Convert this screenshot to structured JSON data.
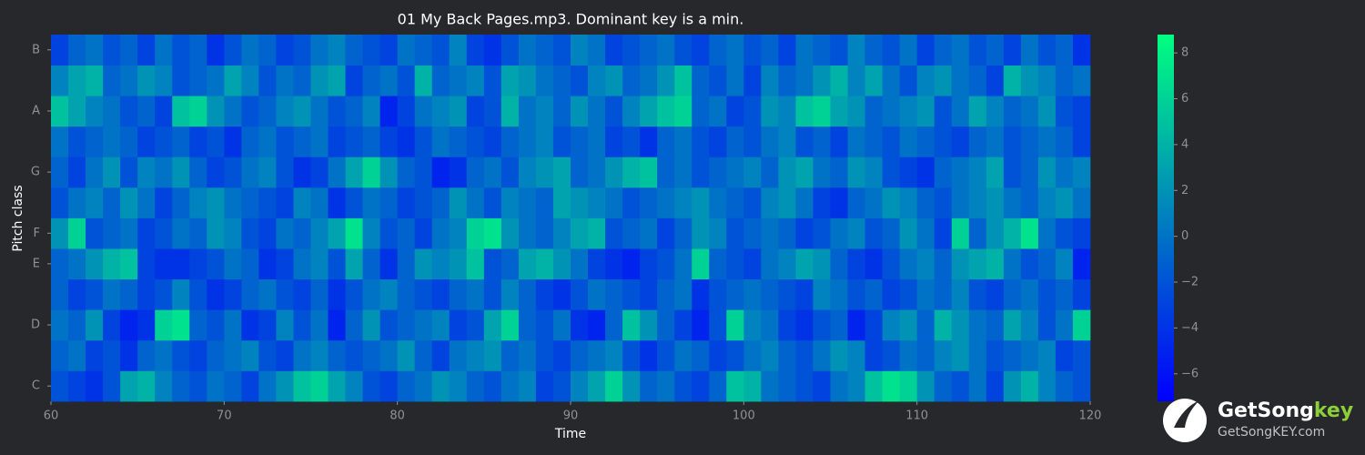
{
  "chart_data": {
    "type": "heatmap",
    "title": "01 My Back Pages.mp3. Dominant key is a min.",
    "x_label": "Time",
    "y_label": "Pitch class",
    "xbins": [
      60,
      61,
      62,
      63,
      64,
      65,
      66,
      67,
      68,
      69,
      70,
      71,
      72,
      73,
      74,
      75,
      76,
      77,
      78,
      79,
      80,
      81,
      82,
      83,
      84,
      85,
      86,
      87,
      88,
      89,
      90,
      91,
      92,
      93,
      94,
      95,
      96,
      97,
      98,
      99,
      100,
      101,
      102,
      103,
      104,
      105,
      106,
      107,
      108,
      109,
      110,
      111,
      112,
      113,
      114,
      115,
      116,
      117,
      118,
      119,
      120
    ],
    "xlim": [
      60,
      120
    ],
    "xticks": [
      60,
      70,
      80,
      90,
      100,
      110,
      120
    ],
    "categories": [
      "C",
      null,
      "D",
      null,
      "E",
      "F",
      null,
      "G",
      null,
      "A",
      null,
      "B"
    ],
    "colormap": "winter",
    "zlim": [
      -7.2,
      8.8
    ],
    "zticks": [
      {
        "value": -6,
        "label": "−6"
      },
      {
        "value": -4,
        "label": "−4"
      },
      {
        "value": -2,
        "label": "−2"
      },
      0,
      2,
      4,
      6,
      8
    ],
    "z": [
      [
        -2,
        -3,
        -4,
        -2,
        3,
        4,
        1,
        -1,
        -2,
        0,
        -1,
        -3,
        0,
        2,
        5,
        6,
        3,
        1,
        -2,
        -3,
        -1,
        0,
        2,
        1,
        -1,
        -2,
        0,
        1,
        -3,
        -2,
        1,
        3,
        6,
        2,
        -1,
        0,
        -2,
        -3,
        -1,
        5,
        4,
        0,
        -1,
        -2,
        -3,
        0,
        1,
        5,
        7,
        6,
        2,
        -1,
        -2,
        0,
        -3,
        2,
        4,
        1,
        -1,
        -2
      ],
      [
        -1,
        0,
        -3,
        -2,
        -4,
        -1,
        0,
        -2,
        -3,
        -1,
        0,
        1,
        -2,
        -3,
        0,
        1,
        -1,
        -2,
        -1,
        0,
        2,
        -1,
        -3,
        0,
        1,
        2,
        -1,
        0,
        -2,
        -3,
        -1,
        0,
        1,
        -2,
        -4,
        -2,
        0,
        -1,
        -3,
        -2,
        0,
        1,
        -1,
        -2,
        0,
        2,
        1,
        -3,
        -2,
        0,
        -1,
        1,
        2,
        0,
        -2,
        -1,
        0,
        1,
        -3,
        -2
      ],
      [
        0,
        -1,
        2,
        -3,
        -5,
        -4,
        6,
        7,
        -1,
        -2,
        0,
        -4,
        -3,
        1,
        -2,
        0,
        -5,
        -1,
        2,
        -2,
        -1,
        0,
        1,
        -3,
        -2,
        3,
        6,
        -1,
        -2,
        0,
        -4,
        -5,
        -1,
        5,
        2,
        -1,
        -3,
        -5,
        -2,
        6,
        1,
        0,
        -3,
        -4,
        -2,
        -1,
        -5,
        -3,
        1,
        2,
        -1,
        4,
        2,
        0,
        -1,
        3,
        1,
        -2,
        0,
        6
      ],
      [
        -1,
        -3,
        -2,
        0,
        -1,
        -3,
        -2,
        1,
        -2,
        -4,
        -3,
        -1,
        0,
        -2,
        -3,
        -1,
        -4,
        -2,
        0,
        1,
        -1,
        -2,
        -3,
        -1,
        0,
        -2,
        1,
        -1,
        -3,
        -4,
        -2,
        0,
        -1,
        -2,
        -3,
        -1,
        0,
        -4,
        -2,
        -1,
        0,
        -1,
        -2,
        -3,
        1,
        0,
        -2,
        -1,
        -3,
        -2,
        0,
        -1,
        1,
        -2,
        -3,
        -1,
        0,
        -2,
        -1,
        -3
      ],
      [
        -1,
        0,
        2,
        4,
        5,
        -3,
        -4,
        -4,
        -3,
        -2,
        0,
        -1,
        -4,
        -3,
        0,
        1,
        -2,
        3,
        -1,
        -4,
        -1,
        2,
        1,
        2,
        5,
        -2,
        -1,
        3,
        4,
        2,
        0,
        -3,
        -4,
        -5,
        -3,
        -2,
        0,
        6,
        -1,
        -2,
        -3,
        0,
        1,
        3,
        2,
        -1,
        -3,
        -4,
        -2,
        0,
        1,
        -1,
        2,
        3,
        4,
        0,
        -2,
        -1,
        1,
        -5
      ],
      [
        2,
        6,
        -2,
        -1,
        0,
        -3,
        -2,
        0,
        -1,
        2,
        1,
        -2,
        -3,
        0,
        -1,
        1,
        3,
        7,
        1,
        -2,
        -1,
        -3,
        0,
        1,
        6,
        7,
        2,
        0,
        -1,
        1,
        3,
        4,
        -2,
        -1,
        0,
        -3,
        -1,
        2,
        1,
        -2,
        -1,
        0,
        -1,
        -3,
        -2,
        0,
        1,
        -2,
        -1,
        2,
        0,
        -3,
        6,
        -1,
        2,
        4,
        7,
        0,
        -2,
        -3
      ],
      [
        -2,
        0,
        1,
        -1,
        2,
        0,
        -3,
        -1,
        1,
        2,
        0,
        -1,
        -2,
        -3,
        1,
        0,
        -4,
        -2,
        0,
        -1,
        -3,
        -2,
        -1,
        2,
        0,
        -2,
        1,
        0,
        -1,
        3,
        2,
        1,
        0,
        -2,
        -1,
        0,
        1,
        2,
        0,
        -1,
        -2,
        1,
        2,
        0,
        -3,
        -4,
        -1,
        0,
        2,
        1,
        -1,
        -2,
        0,
        1,
        2,
        0,
        -1,
        1,
        2,
        0
      ],
      [
        -1,
        -3,
        0,
        2,
        -2,
        1,
        0,
        2,
        -1,
        -3,
        -2,
        0,
        1,
        -2,
        -4,
        -3,
        0,
        3,
        6,
        2,
        -1,
        -2,
        -5,
        -4,
        -1,
        0,
        -2,
        1,
        2,
        3,
        -1,
        0,
        2,
        4,
        5,
        -1,
        0,
        -2,
        -1,
        0,
        1,
        -1,
        2,
        3,
        0,
        -1,
        2,
        1,
        -2,
        -3,
        -4,
        -1,
        0,
        1,
        3,
        -2,
        -1,
        2,
        0,
        1
      ],
      [
        0,
        -2,
        -1,
        0,
        -1,
        -3,
        -2,
        -1,
        -3,
        -2,
        -4,
        -1,
        0,
        -2,
        -1,
        0,
        -3,
        -2,
        -1,
        -3,
        -4,
        -2,
        0,
        -1,
        -2,
        -3,
        -1,
        0,
        1,
        -2,
        -1,
        0,
        -3,
        -2,
        -4,
        -1,
        0,
        -2,
        -3,
        -1,
        -2,
        0,
        1,
        -2,
        -1,
        -3,
        0,
        -1,
        -2,
        0,
        -1,
        -2,
        -3,
        -1,
        0,
        -2,
        -1,
        0,
        -1,
        -3
      ],
      [
        5,
        3,
        1,
        0,
        -2,
        -1,
        -3,
        5,
        6,
        2,
        0,
        -2,
        -1,
        1,
        2,
        0,
        -2,
        -1,
        1,
        -5,
        -3,
        0,
        1,
        2,
        -3,
        -2,
        4,
        0,
        1,
        -1,
        2,
        0,
        -2,
        1,
        3,
        5,
        6,
        -1,
        0,
        -3,
        -2,
        2,
        1,
        5,
        6,
        3,
        2,
        -1,
        0,
        1,
        2,
        -2,
        0,
        3,
        1,
        -1,
        0,
        2,
        -2,
        -3
      ],
      [
        1,
        3,
        4,
        -1,
        0,
        2,
        1,
        -2,
        -1,
        0,
        3,
        1,
        -2,
        0,
        -1,
        2,
        3,
        -3,
        -1,
        0,
        -2,
        4,
        -1,
        0,
        1,
        -2,
        3,
        2,
        0,
        -1,
        -2,
        1,
        2,
        -1,
        0,
        2,
        5,
        -1,
        -2,
        0,
        -3,
        1,
        -1,
        0,
        2,
        4,
        1,
        3,
        0,
        -2,
        1,
        2,
        0,
        -1,
        -3,
        4,
        2,
        1,
        -1,
        0
      ],
      [
        -3,
        -1,
        0,
        -2,
        -1,
        -3,
        0,
        -2,
        -1,
        -4,
        -2,
        0,
        -1,
        -3,
        -2,
        0,
        1,
        -1,
        -2,
        -3,
        0,
        -1,
        -2,
        1,
        -3,
        -4,
        -2,
        0,
        -1,
        -2,
        1,
        0,
        -3,
        -2,
        -1,
        0,
        -2,
        -3,
        -1,
        0,
        -2,
        -1,
        -3,
        0,
        -1,
        -2,
        1,
        -1,
        -2,
        0,
        -3,
        -1,
        0,
        -2,
        -1,
        -3,
        0,
        -2,
        -1,
        -4
      ]
    ]
  },
  "branding": {
    "name": "GetSong",
    "accent": "key",
    "url": "GetSongKEY.com"
  }
}
